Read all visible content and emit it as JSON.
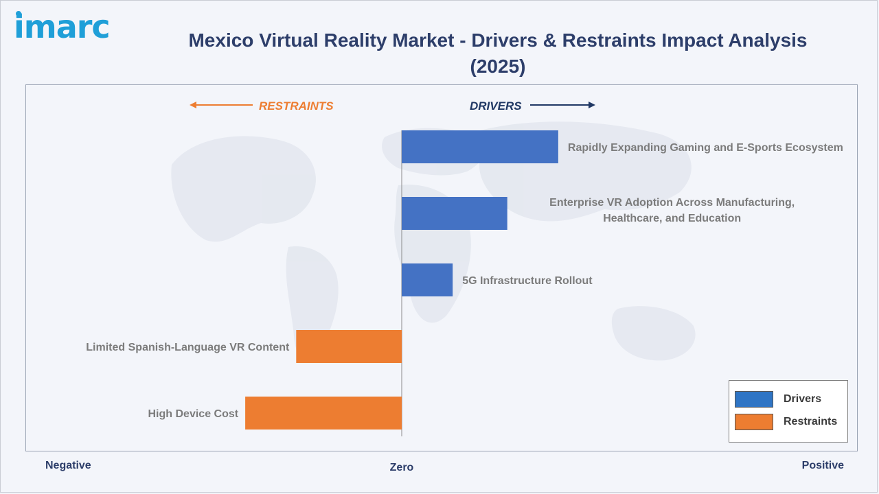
{
  "header": {
    "logo_text": "imarc",
    "title": "Mexico Virtual Reality Market - Drivers & Restraints Impact Analysis (2025)"
  },
  "directions": {
    "restraints_label": "RESTRAINTS",
    "drivers_label": "DRIVERS"
  },
  "axis_labels": {
    "negative": "Negative",
    "zero": "Zero",
    "positive": "Positive"
  },
  "legend": {
    "items": [
      {
        "label": "Drivers",
        "color": "#4472c4"
      },
      {
        "label": "Restraints",
        "color": "#ed7d31"
      }
    ]
  },
  "colors": {
    "drivers": "#4472c4",
    "restraints": "#ed7d31",
    "drivers_legend": "#2f75c5",
    "restraints_legend": "#ed7d31",
    "restraints_label": "#ed7d31",
    "drivers_label": "#203864",
    "title": "#2d3e6a",
    "logo": "#1f9fd8"
  },
  "chart_data": {
    "type": "bar",
    "orientation": "horizontal",
    "title": "Mexico Virtual Reality Market - Drivers & Restraints Impact Analysis (2025)",
    "xlim": [
      -1,
      1
    ],
    "grid": false,
    "legend_position": "bottom-right",
    "bars": [
      {
        "label": "Rapidly Expanding Gaming and E-Sports Ecosystem",
        "value": 0.43,
        "series": "Drivers"
      },
      {
        "label": "Enterprise VR Adoption Across Manufacturing, Healthcare, and Education",
        "value": 0.29,
        "series": "Drivers"
      },
      {
        "label": "5G Infrastructure Rollout",
        "value": 0.14,
        "series": "Drivers"
      },
      {
        "label": "Limited Spanish-Language VR Content",
        "value": -0.29,
        "series": "Restraints"
      },
      {
        "label": "High Device Cost",
        "value": -0.43,
        "series": "Restraints"
      }
    ]
  }
}
